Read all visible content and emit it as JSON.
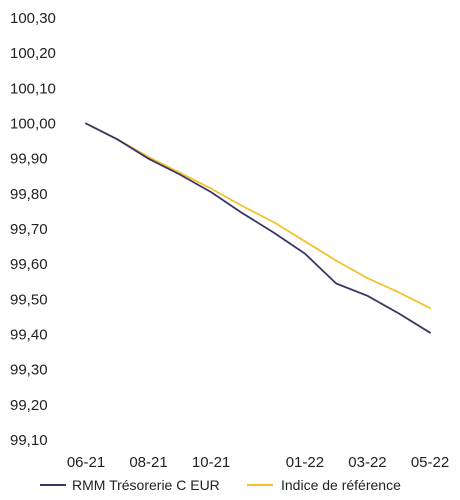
{
  "chart_data": {
    "type": "line",
    "title": "",
    "xlabel": "",
    "ylabel": "",
    "ylim": [
      99.1,
      100.3
    ],
    "y_ticks": [
      "100,30",
      "100,20",
      "100,10",
      "100,00",
      "99,90",
      "99,80",
      "99,70",
      "99,60",
      "99,50",
      "99,40",
      "99,30",
      "99,20",
      "99,10"
    ],
    "x_ticks": [
      "06-21",
      "08-21",
      "10-21",
      "01-22",
      "03-22",
      "05-22"
    ],
    "x_range": [
      "2021-06",
      "2022-05"
    ],
    "grid": false,
    "legend_position": "bottom",
    "series": [
      {
        "name": "RMM Trésorerie C EUR",
        "color": "#3b3566",
        "x": [
          "2021-06",
          "2021-07",
          "2021-08",
          "2021-09",
          "2021-10",
          "2021-11",
          "2021-12",
          "2022-01",
          "2022-02",
          "2022-03",
          "2022-04",
          "2022-05"
        ],
        "values": [
          100.0,
          99.955,
          99.9,
          99.855,
          99.805,
          99.745,
          99.69,
          99.63,
          99.545,
          99.51,
          99.46,
          99.405
        ]
      },
      {
        "name": "Indice de référence",
        "color": "#f2c12e",
        "x": [
          "2021-06",
          "2021-07",
          "2021-08",
          "2021-09",
          "2021-10",
          "2021-11",
          "2021-12",
          "2022-01",
          "2022-02",
          "2022-03",
          "2022-04",
          "2022-05"
        ],
        "values": [
          100.0,
          99.955,
          99.905,
          99.86,
          99.815,
          99.765,
          99.72,
          99.665,
          99.61,
          99.56,
          99.52,
          99.475
        ]
      }
    ]
  }
}
